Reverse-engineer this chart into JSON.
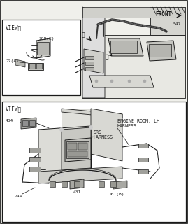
{
  "bg_color": "#f0f0eb",
  "line_color": "#1a1a1a",
  "white": "#ffffff",
  "light_gray": "#d8d8d8",
  "mid_gray": "#aaaaaa",
  "labels": {
    "front": "FRONT",
    "view_a": "VIEWⒶ",
    "view_b": "VIEWⒷ",
    "num_547": "547",
    "num_208": "208(E)",
    "num_27": "27(A)",
    "num_434": "434",
    "num_431": "431",
    "num_244": "244",
    "num_161": "161(B)",
    "srs_harness": "SRS\nHARNESS",
    "engine_room": "ENGINE ROOM. LH\nHARNESS"
  },
  "fs_small": 4.5,
  "fs_view": 5.5,
  "fs_label": 4.8
}
